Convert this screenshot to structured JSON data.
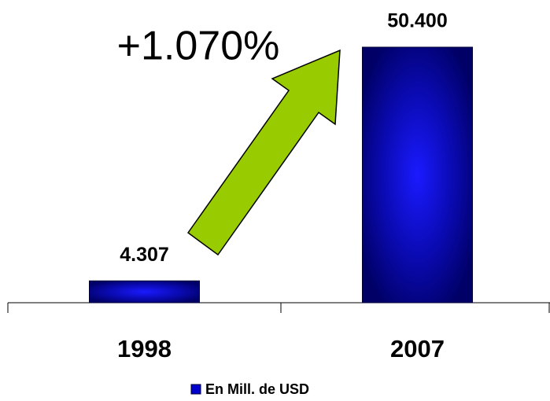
{
  "chart_data": {
    "type": "bar",
    "annotation": "+1.070%",
    "categories": [
      "1998",
      "2007"
    ],
    "series": [
      {
        "name": "En Mill. de USD",
        "color": "#0000cc",
        "values": [
          4307,
          50400
        ],
        "value_labels": [
          "4.307",
          "50.400"
        ]
      }
    ]
  }
}
